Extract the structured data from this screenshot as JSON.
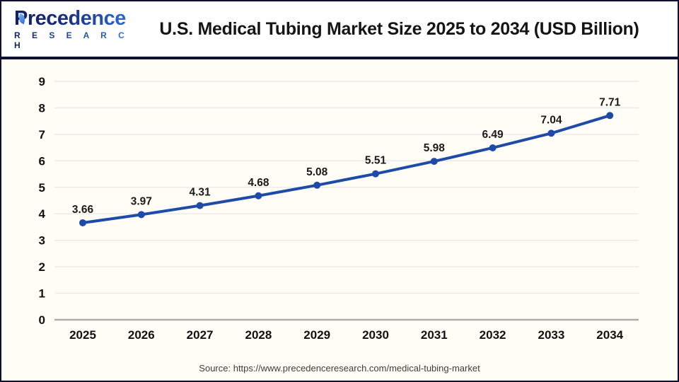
{
  "header": {
    "logo_name": "Precedence",
    "logo_subname": "R E S E A R C H",
    "title": "U.S. Medical Tubing Market Size 2025 to 2034 (USD Billion)"
  },
  "footer": {
    "source": "Source: https://www.precedenceresearch.com/medical-tubing-market"
  },
  "colors": {
    "line": "#1e4ba8",
    "marker": "#1e4ba8",
    "grid": "#e9e9e9",
    "axis_line": "#ababab",
    "tick_label": "#111111",
    "value_label": "#1a1a1a",
    "frame": "#0d102e",
    "chart_background": "#fffdf5",
    "logo_navy": "#151f5e",
    "logo_blue": "#2f6fde"
  },
  "chart_data": {
    "type": "line",
    "title": "U.S. Medical Tubing Market Size 2025 to 2034 (USD Billion)",
    "categories": [
      "2025",
      "2026",
      "2027",
      "2028",
      "2029",
      "2030",
      "2031",
      "2032",
      "2033",
      "2034"
    ],
    "values": [
      3.66,
      3.97,
      4.31,
      4.68,
      5.08,
      5.51,
      5.98,
      6.49,
      7.04,
      7.71
    ],
    "xlabel": "",
    "ylabel": "",
    "ylim": [
      0,
      9
    ],
    "ytick_step": 1,
    "grid": true,
    "legend": "none",
    "marker": "circle",
    "data_labels": true
  }
}
